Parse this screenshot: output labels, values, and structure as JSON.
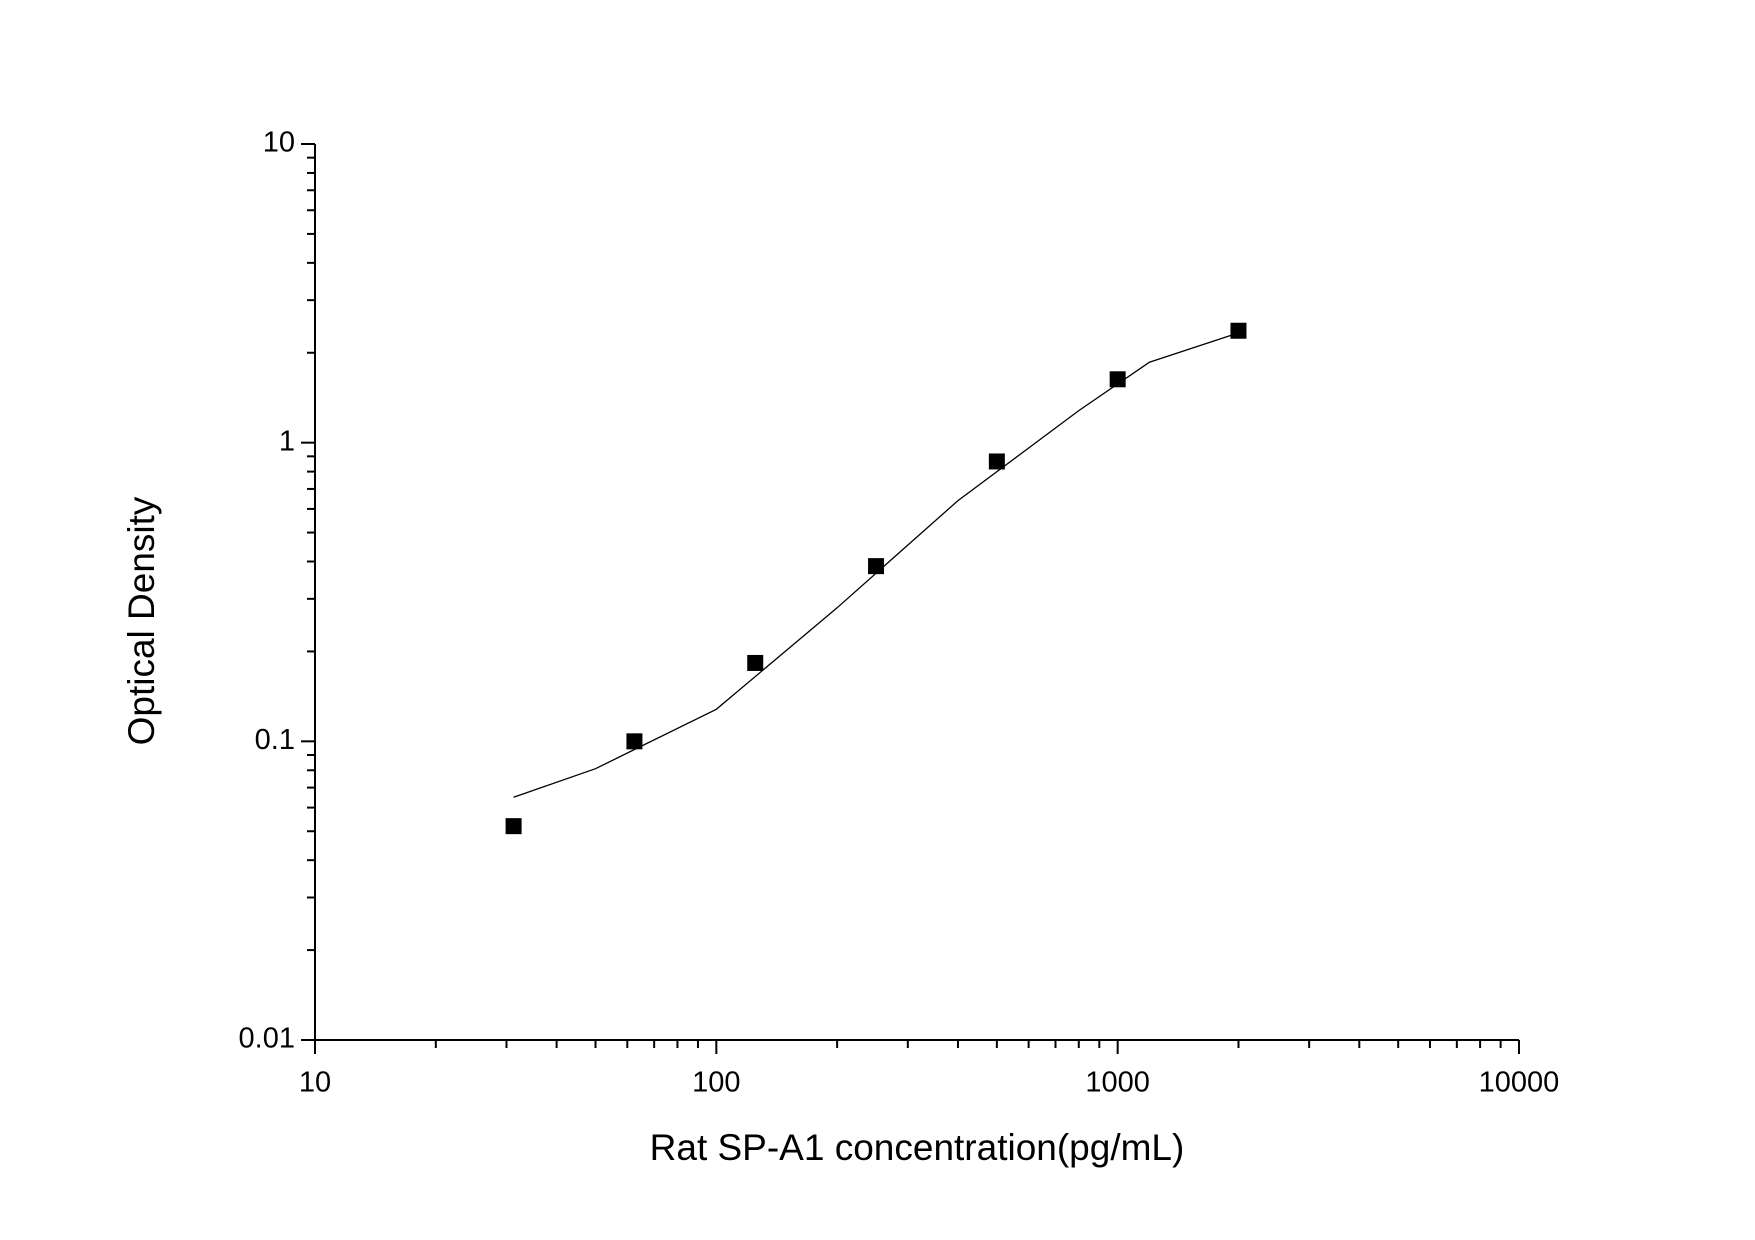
{
  "chart_data": {
    "type": "scatter",
    "xlabel": "Rat SP-A1 concentration(pg/mL)",
    "ylabel": "Optical Density",
    "xscale": "log",
    "yscale": "log",
    "xlim": [
      10,
      10000
    ],
    "ylim": [
      0.01,
      10
    ],
    "xticks": [
      10,
      100,
      1000,
      10000
    ],
    "yticks": [
      0.01,
      0.1,
      1,
      10
    ],
    "xminorticks": [
      20,
      30,
      40,
      50,
      60,
      70,
      80,
      90,
      200,
      300,
      400,
      500,
      600,
      700,
      800,
      900,
      2000,
      3000,
      4000,
      5000,
      6000,
      7000,
      8000,
      9000
    ],
    "yminorticks": [
      0.02,
      0.03,
      0.04,
      0.05,
      0.06,
      0.07,
      0.08,
      0.09,
      0.2,
      0.3,
      0.4,
      0.5,
      0.6,
      0.7,
      0.8,
      0.9,
      2,
      3,
      4,
      5,
      6,
      7,
      8,
      9
    ],
    "series": [
      {
        "mode": "markers",
        "marker": "square",
        "color": "#000000",
        "x": [
          31.25,
          62.5,
          125,
          250,
          500,
          1000,
          2000
        ],
        "values": [
          0.052,
          0.1,
          0.183,
          0.386,
          0.865,
          1.63,
          2.37
        ]
      },
      {
        "mode": "line",
        "color": "#000000",
        "x": [
          31.25,
          50,
          100,
          200,
          400,
          800,
          1200,
          2000
        ],
        "values": [
          0.065,
          0.081,
          0.128,
          0.28,
          0.64,
          1.28,
          1.86,
          2.33
        ]
      }
    ]
  }
}
